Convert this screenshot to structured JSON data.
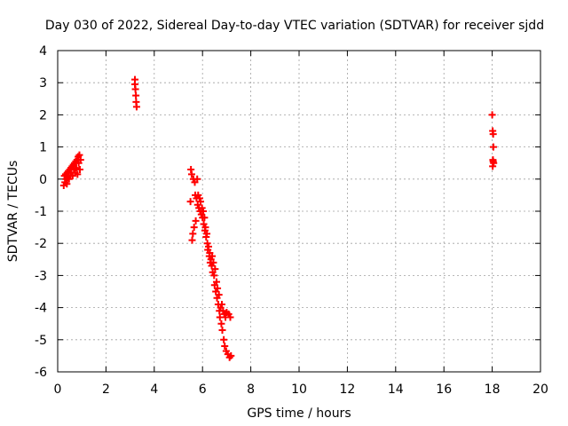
{
  "chart_data": {
    "type": "scatter",
    "title": "Day 030 of 2022, Sidereal Day-to-day VTEC variation (SDTVAR) for receiver sjdd",
    "xlabel": "GPS time / hours",
    "ylabel": "SDTVAR / TECUs",
    "xlim": [
      0,
      20
    ],
    "ylim": [
      -6,
      4
    ],
    "xticks": [
      0,
      2,
      4,
      6,
      8,
      10,
      12,
      14,
      16,
      18,
      20
    ],
    "yticks": [
      -6,
      -5,
      -4,
      -3,
      -2,
      -1,
      0,
      1,
      2,
      3,
      4
    ],
    "grid": true,
    "marker": "plus",
    "series": [
      {
        "name": "SDTVAR",
        "color": "#ff0000",
        "points": [
          [
            0.25,
            -0.2
          ],
          [
            0.28,
            0.1
          ],
          [
            0.3,
            -0.1
          ],
          [
            0.33,
            0.15
          ],
          [
            0.35,
            0.0
          ],
          [
            0.38,
            -0.15
          ],
          [
            0.4,
            0.2
          ],
          [
            0.42,
            0.05
          ],
          [
            0.45,
            0.25
          ],
          [
            0.47,
            0.0
          ],
          [
            0.5,
            0.3
          ],
          [
            0.52,
            0.1
          ],
          [
            0.55,
            0.35
          ],
          [
            0.57,
            0.2
          ],
          [
            0.6,
            0.4
          ],
          [
            0.62,
            0.1
          ],
          [
            0.65,
            0.45
          ],
          [
            0.67,
            0.3
          ],
          [
            0.7,
            0.5
          ],
          [
            0.72,
            0.2
          ],
          [
            0.75,
            0.55
          ],
          [
            0.77,
            0.35
          ],
          [
            0.8,
            0.6
          ],
          [
            0.82,
            0.15
          ],
          [
            0.85,
            0.7
          ],
          [
            0.87,
            0.5
          ],
          [
            0.9,
            0.75
          ],
          [
            0.92,
            0.3
          ],
          [
            0.95,
            0.6
          ],
          [
            3.2,
            3.1
          ],
          [
            3.22,
            2.8
          ],
          [
            3.24,
            2.6
          ],
          [
            3.25,
            2.4
          ],
          [
            3.27,
            2.25
          ],
          [
            3.2,
            2.95
          ],
          [
            5.5,
            -0.7
          ],
          [
            5.52,
            0.3
          ],
          [
            5.55,
            0.15
          ],
          [
            5.57,
            -1.9
          ],
          [
            5.6,
            -1.7
          ],
          [
            5.62,
            0.0
          ],
          [
            5.65,
            -1.5
          ],
          [
            5.68,
            -0.1
          ],
          [
            5.7,
            -0.5
          ],
          [
            5.72,
            -1.3
          ],
          [
            5.75,
            -0.6
          ],
          [
            5.78,
            0.0
          ],
          [
            5.8,
            -0.8
          ],
          [
            5.82,
            -0.5
          ],
          [
            5.85,
            -0.9
          ],
          [
            5.88,
            -0.6
          ],
          [
            5.9,
            -1.0
          ],
          [
            5.92,
            -0.7
          ],
          [
            5.95,
            -1.1
          ],
          [
            5.98,
            -0.9
          ],
          [
            6.0,
            -1.2
          ],
          [
            6.03,
            -1.0
          ],
          [
            6.05,
            -1.4
          ],
          [
            6.08,
            -1.2
          ],
          [
            6.1,
            -1.6
          ],
          [
            6.12,
            -1.5
          ],
          [
            6.15,
            -1.8
          ],
          [
            6.18,
            -1.7
          ],
          [
            6.2,
            -2.0
          ],
          [
            6.22,
            -2.2
          ],
          [
            6.25,
            -2.1
          ],
          [
            6.28,
            -2.4
          ],
          [
            6.3,
            -2.3
          ],
          [
            6.32,
            -2.6
          ],
          [
            6.35,
            -2.5
          ],
          [
            6.38,
            -2.7
          ],
          [
            6.4,
            -2.4
          ],
          [
            6.42,
            -2.9
          ],
          [
            6.45,
            -2.6
          ],
          [
            6.48,
            -3.0
          ],
          [
            6.5,
            -3.3
          ],
          [
            6.52,
            -2.8
          ],
          [
            6.55,
            -3.5
          ],
          [
            6.58,
            -3.2
          ],
          [
            6.6,
            -3.7
          ],
          [
            6.62,
            -3.4
          ],
          [
            6.65,
            -3.9
          ],
          [
            6.68,
            -3.6
          ],
          [
            6.7,
            -4.1
          ],
          [
            6.72,
            -4.3
          ],
          [
            6.75,
            -4.0
          ],
          [
            6.78,
            -4.5
          ],
          [
            6.8,
            -3.9
          ],
          [
            6.82,
            -4.7
          ],
          [
            6.85,
            -4.1
          ],
          [
            6.88,
            -5.0
          ],
          [
            6.9,
            -4.2
          ],
          [
            6.92,
            -5.2
          ],
          [
            6.95,
            -4.3
          ],
          [
            6.98,
            -5.35
          ],
          [
            7.0,
            -4.15
          ],
          [
            7.05,
            -5.45
          ],
          [
            7.08,
            -4.2
          ],
          [
            7.12,
            -5.55
          ],
          [
            7.15,
            -4.3
          ],
          [
            7.18,
            -5.5
          ],
          [
            18.0,
            2.0
          ],
          [
            18.02,
            1.5
          ],
          [
            18.04,
            1.4
          ],
          [
            18.05,
            1.0
          ],
          [
            18.03,
            0.6
          ],
          [
            18.06,
            0.5
          ],
          [
            18.02,
            0.4
          ],
          [
            18.04,
            0.55
          ]
        ]
      }
    ]
  }
}
